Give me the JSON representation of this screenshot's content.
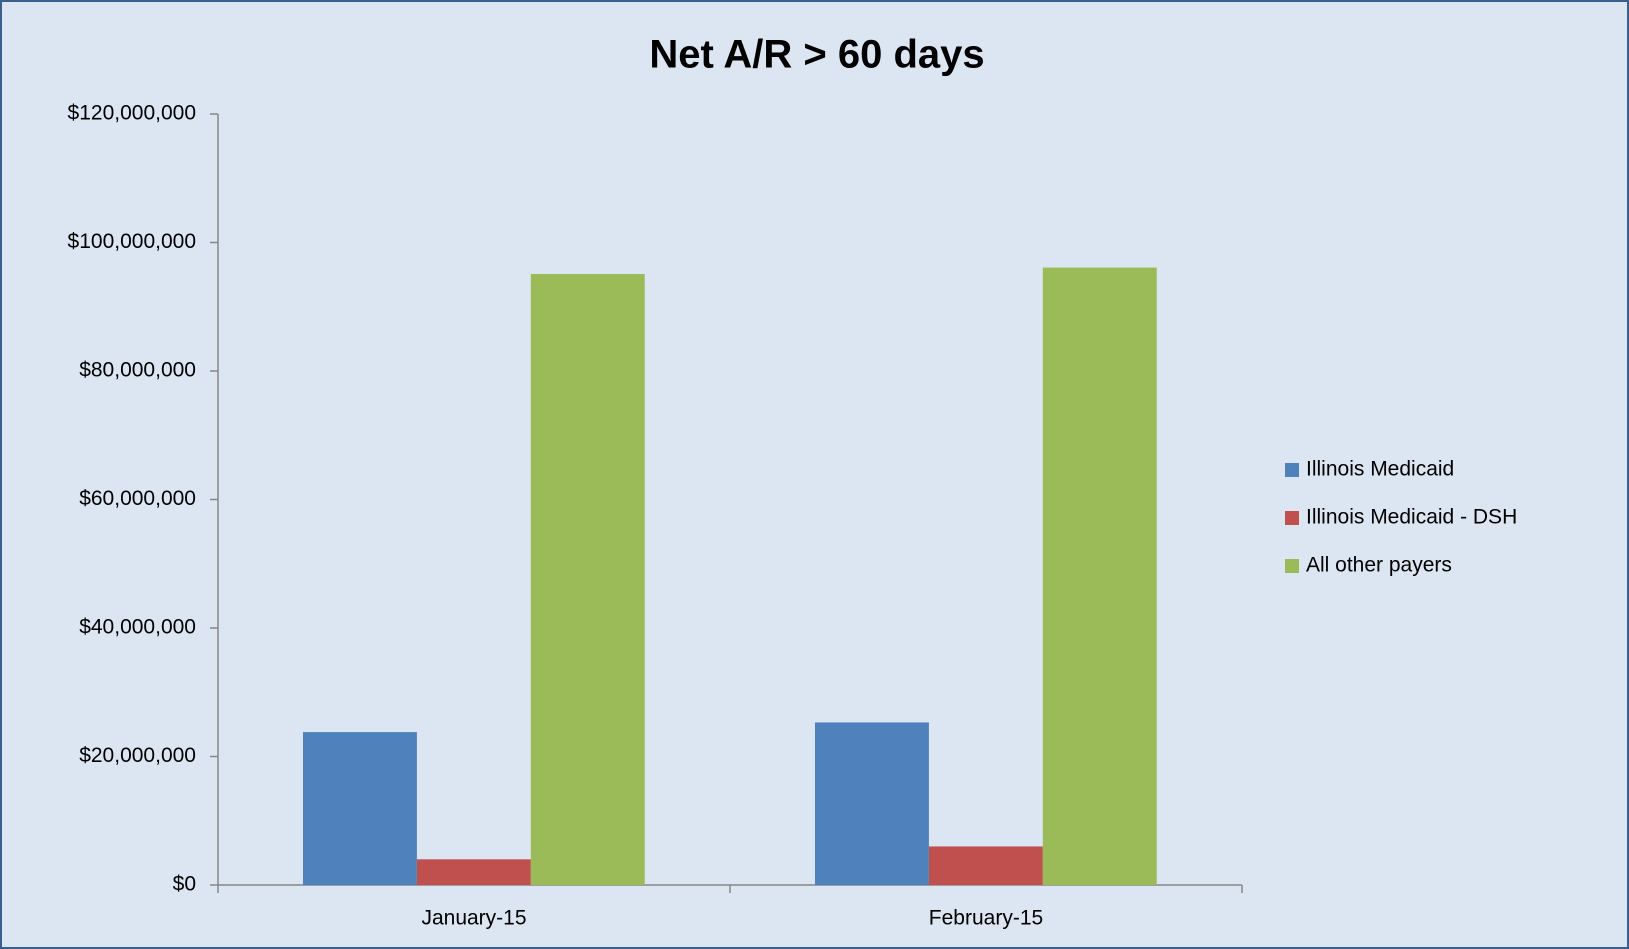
{
  "chart_data": {
    "type": "bar",
    "title": "Net A/R > 60 days",
    "categories": [
      "January-15",
      "February-15"
    ],
    "series": [
      {
        "name": "Illinois Medicaid",
        "color": "#4f81bd",
        "values": [
          23800000,
          25300000
        ]
      },
      {
        "name": "Illinois Medicaid - DSH",
        "color": "#c0504d",
        "values": [
          4000000,
          6000000
        ]
      },
      {
        "name": "All other payers",
        "color": "#9bbb59",
        "values": [
          95100000,
          96100000
        ]
      }
    ],
    "ylim": [
      0,
      120000000
    ],
    "yticks": [
      {
        "value": 0,
        "label": "$0"
      },
      {
        "value": 20000000,
        "label": "$20,000,000"
      },
      {
        "value": 40000000,
        "label": "$40,000,000"
      },
      {
        "value": 60000000,
        "label": "$60,000,000"
      },
      {
        "value": 80000000,
        "label": "$80,000,000"
      },
      {
        "value": 100000000,
        "label": "$100,000,000"
      },
      {
        "value": 120000000,
        "label": "$120,000,000"
      }
    ],
    "legend": "right",
    "grid": false
  }
}
